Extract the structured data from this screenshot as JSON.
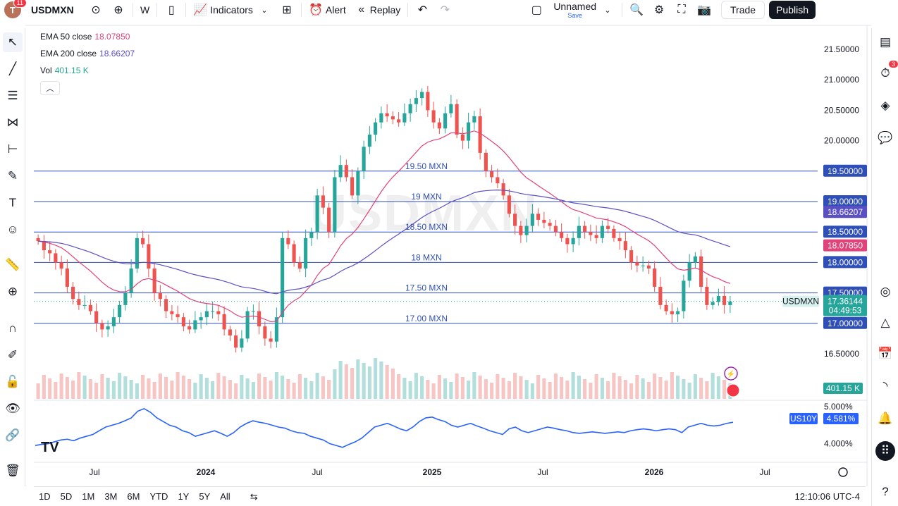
{
  "topbar": {
    "avatar_letter": "T",
    "avatar_badge": "11",
    "symbol": "USDMXN",
    "interval": "W",
    "indicators_label": "Indicators",
    "alert_label": "Alert",
    "replay_label": "Replay",
    "layout_name": "Unnamed",
    "save_label": "Save",
    "trade_label": "Trade",
    "publish_label": "Publish"
  },
  "legend": {
    "ema50_label": "EMA 50 close",
    "ema50_value": "18.07850",
    "ema200_label": "EMA 200 close",
    "ema200_value": "18.66207",
    "vol_label": "Vol",
    "vol_value": "401.15 K"
  },
  "watermark": "USDMXN",
  "rightbar": {
    "alerts_badge": "3"
  },
  "bottom": {
    "ranges": [
      "1D",
      "5D",
      "1M",
      "3M",
      "6M",
      "YTD",
      "1Y",
      "5Y",
      "All"
    ],
    "clock": "12:10:06 UTC-4"
  },
  "colors": {
    "up": "#26a69a",
    "down": "#ef5350",
    "ema50": "#e0427a",
    "ema200": "#5b4fc4",
    "hline": "#2f4fb8",
    "us10y": "#2962ff",
    "vol_up": "#b2dfdb",
    "vol_down": "#f7c5c4"
  },
  "chart_data": {
    "type": "candlestick",
    "symbol": "USDMXN",
    "interval": "W",
    "ylim": [
      16.5,
      21.5
    ],
    "y_ticks": [
      "21.50000",
      "21.00000",
      "20.50000",
      "20.00000",
      "16.50000"
    ],
    "x_ticks": [
      "Jul",
      "2024",
      "Jul",
      "2025",
      "Jul",
      "2026",
      "Jul"
    ],
    "horizontal_lines": [
      {
        "label": "19.50 MXN",
        "value": 19.5,
        "axis_label": "19.50000"
      },
      {
        "label": "19 MXN",
        "value": 19.0,
        "axis_label": "19.00000"
      },
      {
        "label": "18.50 MXN",
        "value": 18.5,
        "axis_label": "18.50000"
      },
      {
        "label": "18 MXN",
        "value": 18.0,
        "axis_label": "18.00000"
      },
      {
        "label": "17.50 MXN",
        "value": 17.5,
        "axis_label": "17.50000"
      },
      {
        "label": "17.00 MXN",
        "value": 17.0,
        "axis_label": "17.00000"
      }
    ],
    "price_badges": [
      {
        "label": "18.66207",
        "kind": "ema200"
      },
      {
        "label": "18.07850",
        "kind": "ema50"
      }
    ],
    "last_price": {
      "symbol": "USDMXN",
      "price": "17.36144",
      "countdown": "04:49:53",
      "value": 17.36144
    },
    "candles_close": [
      18.35,
      18.2,
      18.15,
      18.0,
      17.9,
      17.6,
      17.4,
      17.3,
      17.3,
      17.2,
      17.0,
      16.9,
      16.95,
      17.1,
      17.3,
      17.5,
      17.9,
      18.4,
      18.3,
      17.9,
      17.5,
      17.4,
      17.2,
      17.15,
      17.1,
      16.95,
      16.9,
      17.05,
      17.1,
      17.2,
      17.2,
      17.15,
      16.9,
      16.8,
      16.6,
      16.75,
      17.2,
      17.2,
      16.95,
      16.75,
      16.7,
      17.1,
      18.4,
      18.3,
      18.0,
      17.9,
      18.4,
      18.5,
      19.1,
      18.9,
      18.5,
      19.4,
      19.6,
      19.4,
      19.1,
      19.5,
      19.9,
      20.1,
      20.3,
      20.45,
      20.4,
      20.35,
      20.3,
      20.45,
      20.6,
      20.7,
      20.8,
      20.5,
      20.3,
      20.2,
      20.45,
      20.6,
      20.1,
      20.0,
      20.3,
      20.4,
      19.8,
      19.5,
      19.4,
      19.3,
      19.1,
      18.8,
      18.6,
      18.45,
      18.6,
      18.8,
      18.7,
      18.65,
      18.6,
      18.5,
      18.4,
      18.3,
      18.4,
      18.6,
      18.5,
      18.45,
      18.4,
      18.6,
      18.55,
      18.4,
      18.35,
      18.2,
      18.0,
      17.95,
      17.95,
      17.9,
      17.6,
      17.3,
      17.2,
      17.15,
      17.2,
      17.7,
      18.0,
      18.1,
      17.6,
      17.3,
      17.35,
      17.45,
      17.3,
      17.36
    ],
    "volume_label": "401.15 K",
    "subchart": {
      "symbol": "US10Y",
      "value": "4.581%",
      "y_ticks": [
        "5.000%",
        "4.000%"
      ],
      "ylim": [
        3.8,
        5.1
      ],
      "values": [
        3.95,
        3.98,
        4.0,
        4.05,
        4.1,
        4.12,
        4.08,
        4.15,
        4.2,
        4.25,
        4.35,
        4.45,
        4.5,
        4.55,
        4.62,
        4.7,
        4.88,
        4.95,
        4.85,
        4.7,
        4.6,
        4.5,
        4.45,
        4.35,
        4.3,
        4.2,
        4.25,
        4.3,
        4.35,
        4.28,
        4.2,
        4.3,
        4.45,
        4.55,
        4.62,
        4.58,
        4.55,
        4.5,
        4.45,
        4.42,
        4.35,
        4.3,
        4.28,
        4.2,
        4.15,
        4.1,
        4.0,
        3.95,
        3.9,
        3.98,
        4.05,
        4.15,
        4.3,
        4.45,
        4.5,
        4.55,
        4.48,
        4.4,
        4.35,
        4.45,
        4.6,
        4.7,
        4.72,
        4.65,
        4.6,
        4.5,
        4.45,
        4.5,
        4.55,
        4.48,
        4.42,
        4.35,
        4.3,
        4.25,
        4.4,
        4.45,
        4.35,
        4.3,
        4.35,
        4.4,
        4.45,
        4.42,
        4.38,
        4.35,
        4.3,
        4.28,
        4.3,
        4.32,
        4.3,
        4.28,
        4.3,
        4.32,
        4.3,
        4.35,
        4.38,
        4.4,
        4.38,
        4.35,
        4.38,
        4.4,
        4.38,
        4.3,
        4.45,
        4.5,
        4.55,
        4.5,
        4.48,
        4.5,
        4.55,
        4.58
      ]
    }
  }
}
